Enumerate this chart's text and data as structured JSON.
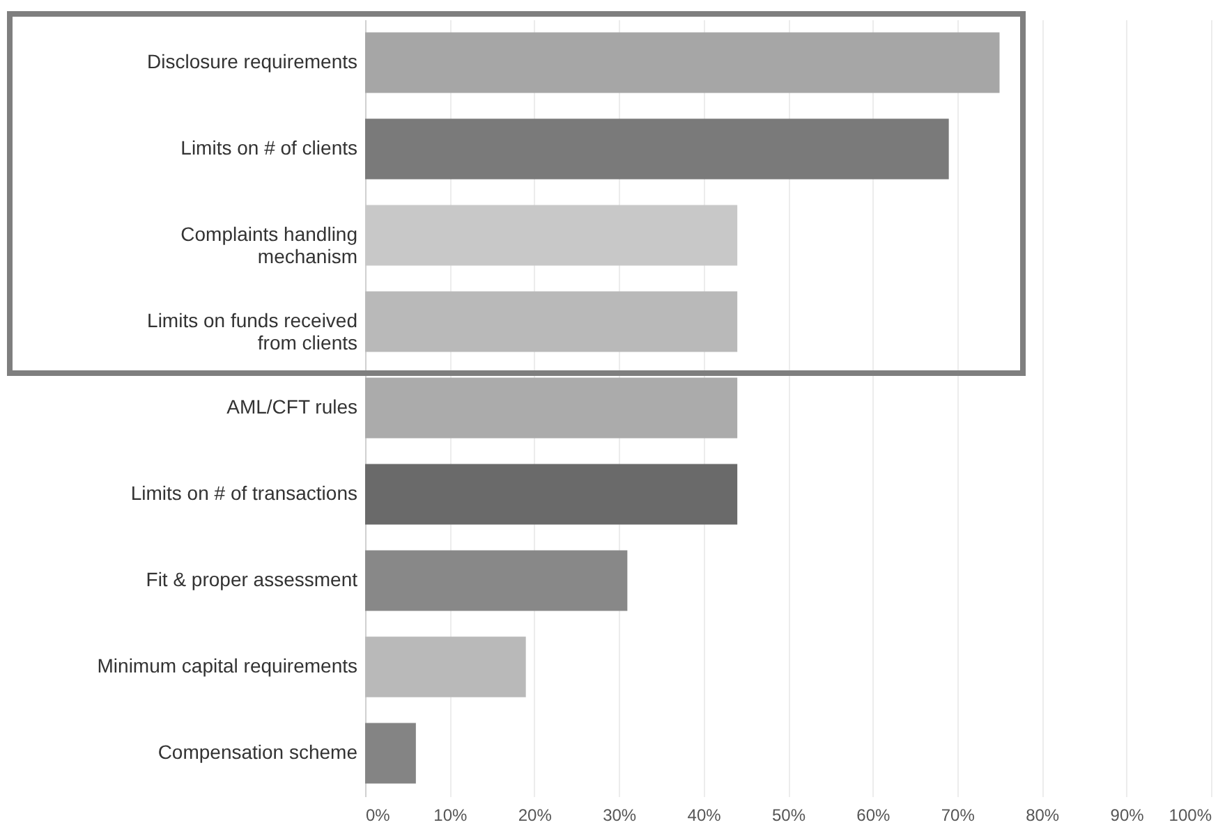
{
  "chart_data": {
    "type": "bar",
    "orientation": "horizontal",
    "categories": [
      "Disclosure requirements",
      "Limits on # of clients",
      "Complaints handling mechanism",
      "Limits on funds received from clients",
      "AML/CFT rules",
      "Limits on # of transactions",
      "Fit & proper assessment",
      "Minimum capital requirements",
      "Compensation scheme"
    ],
    "values": [
      75,
      69,
      44,
      44,
      44,
      44,
      31,
      19,
      6
    ],
    "colors": [
      "#a6a6a6",
      "#7a7a7a",
      "#c8c8c8",
      "#b9b9b9",
      "#ababab",
      "#6a6a6a",
      "#888888",
      "#b9b9b9",
      "#848484"
    ],
    "xlim": [
      0,
      100
    ],
    "xticks": [
      {
        "value": 0,
        "label": "0%"
      },
      {
        "value": 10,
        "label": "10%"
      },
      {
        "value": 20,
        "label": "20%"
      },
      {
        "value": 30,
        "label": "30%"
      },
      {
        "value": 40,
        "label": "40%"
      },
      {
        "value": 50,
        "label": "50%"
      },
      {
        "value": 60,
        "label": "60%"
      },
      {
        "value": 70,
        "label": "70%"
      },
      {
        "value": 80,
        "label": "80%"
      },
      {
        "value": 90,
        "label": "90%"
      },
      {
        "value": 100,
        "label": "100%"
      }
    ],
    "grid": "x"
  }
}
